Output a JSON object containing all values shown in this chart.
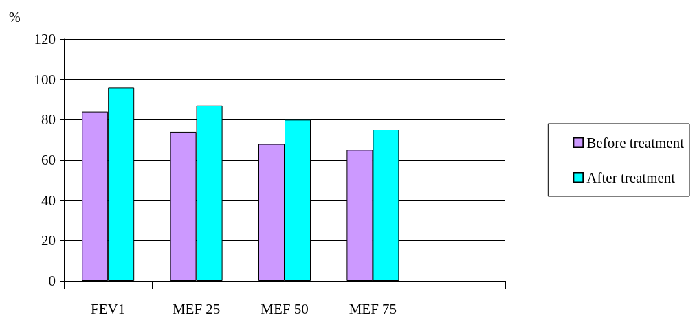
{
  "chart_data": {
    "type": "bar",
    "ylabel": "%",
    "categories": [
      "FEV1",
      "MEF 25",
      "MEF 50",
      "MEF 75",
      null
    ],
    "series": [
      {
        "name": "Before treatment",
        "color": "#cc99ff",
        "values": [
          84,
          74,
          68,
          65,
          null
        ]
      },
      {
        "name": "After treatment",
        "color": "#00ffff",
        "values": [
          96,
          87,
          80,
          75,
          null
        ]
      }
    ],
    "ylim": [
      0,
      120
    ],
    "yticks": [
      0,
      20,
      40,
      60,
      80,
      100,
      120
    ],
    "grid": "y",
    "legend": "right"
  }
}
